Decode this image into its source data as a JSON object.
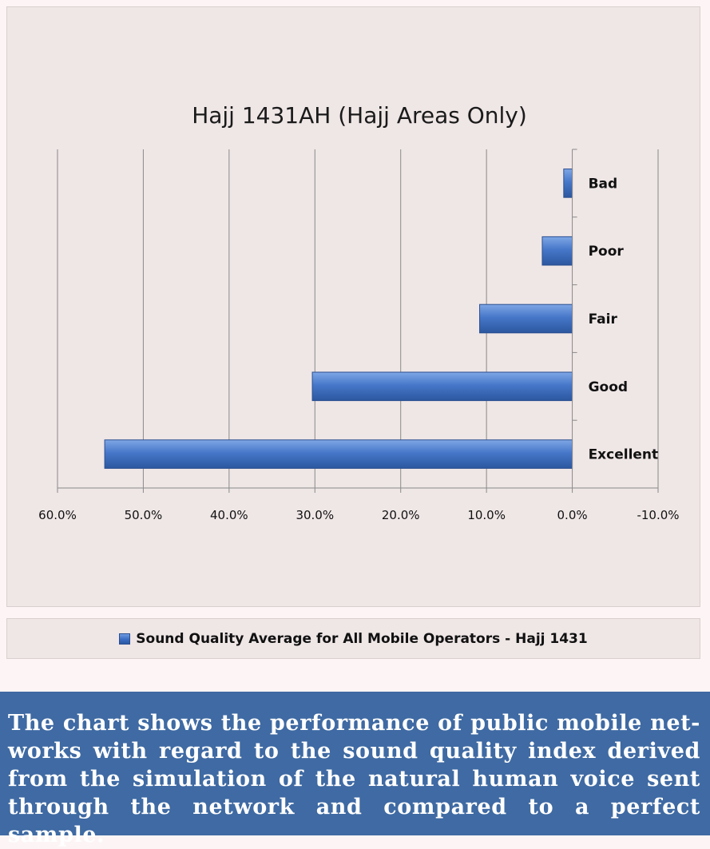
{
  "chart_data": {
    "type": "bar",
    "orientation": "horizontal",
    "x_axis_reversed": true,
    "title": "Hajj 1431AH (Hajj Areas Only)",
    "categories": [
      "Excellent",
      "Good",
      "Fair",
      "Poor",
      "Bad"
    ],
    "series": [
      {
        "name": "Sound Quality Average for All Mobile Operators - Hajj 1431",
        "values": [
          54.5,
          30.3,
          10.8,
          3.5,
          1.0
        ],
        "color": "#3d6fc4"
      }
    ],
    "xlim": [
      -10,
      60
    ],
    "x_ticks": [
      60,
      50,
      40,
      30,
      20,
      10,
      0,
      -10
    ],
    "x_tick_labels": [
      "60.0%",
      "50.0%",
      "40.0%",
      "30.0%",
      "20.0%",
      "10.0%",
      "0.0%",
      "-10.0%"
    ],
    "grid": true,
    "legend": "bottom"
  },
  "caption": "The chart shows the performance of public mobile net-works with regard to the sound quality index derived from the simulation of the natural human voice sent through the network and compared to a perfect sample.",
  "colors": {
    "bar": "#3d6fc4",
    "panel": "#efe6e6",
    "caption_bg": "#3f6aa3"
  }
}
